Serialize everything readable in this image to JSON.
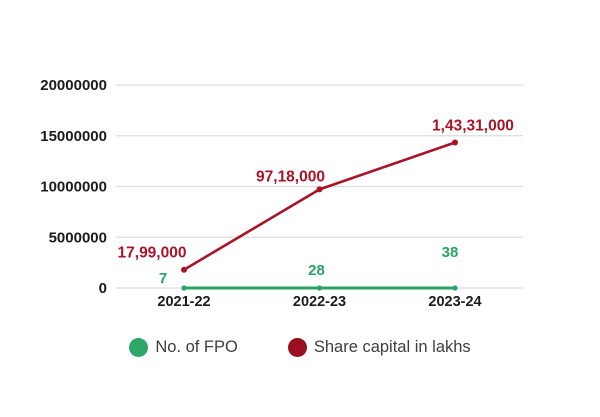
{
  "chart_data": {
    "type": "line",
    "title": "",
    "xlabel": "",
    "ylabel": "",
    "categories": [
      "2021-22",
      "2022-23",
      "2023-24"
    ],
    "series": [
      {
        "name": "No. of FPO",
        "values": [
          7,
          28,
          38
        ],
        "point_labels": [
          "7",
          "28",
          "38"
        ],
        "color": "#28a464",
        "label_color": "#28a464",
        "line_width": 3,
        "marker_radius": 2.6,
        "label_font_size": 15,
        "label_offsets": [
          [
            -21,
            -5
          ],
          [
            -3,
            -13
          ],
          [
            -5,
            -31
          ]
        ]
      },
      {
        "name": "Share capital in lakhs",
        "values": [
          1799000,
          9718000,
          14331000
        ],
        "point_labels": [
          "17,99,000",
          "97,18,000",
          "1,43,31,000"
        ],
        "color": "#ab1328",
        "label_color": "#ab1328",
        "line_width": 2.6,
        "marker_radius": 3,
        "label_font_size": 15.5,
        "label_offsets": [
          [
            -32,
            -12
          ],
          [
            -29,
            -8
          ],
          [
            18,
            -12
          ]
        ]
      }
    ],
    "ylim": [
      0,
      20000000
    ],
    "yticks": [
      0,
      5000000,
      10000000,
      15000000,
      20000000
    ],
    "ytick_labels": [
      "0",
      "5000000",
      "10000000",
      "15000000",
      "20000000"
    ],
    "grid": true,
    "gridline_color": "#dddddd",
    "tick_label_color": "#1c1c1c",
    "legend_position": "bottom",
    "layout": {
      "plot": {
        "x_left": 116,
        "x_right": 523,
        "y_top": 85,
        "y_bottom": 288
      },
      "category_x": [
        184,
        319.5,
        455
      ],
      "ytick_label_right_x": 107,
      "ytick_font_size": 15,
      "xtick_font_size": 14.5,
      "xtick_label_baseline_y": 306
    }
  },
  "legend": {
    "items": [
      {
        "label": "No. of FPO",
        "color": "#2da768"
      },
      {
        "label": "Share capital in lakhs",
        "color": "#9b101f"
      }
    ]
  }
}
